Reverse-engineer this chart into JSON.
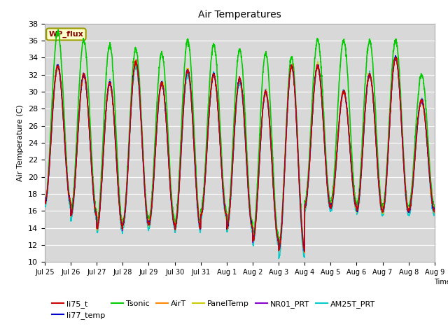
{
  "title": "Air Temperatures",
  "ylabel": "Air Temperature (C)",
  "xlabel": "Time",
  "ylim": [
    10,
    38
  ],
  "yticks": [
    10,
    12,
    14,
    16,
    18,
    20,
    22,
    24,
    26,
    28,
    30,
    32,
    34,
    36,
    38
  ],
  "series": {
    "li75_t": {
      "color": "#cc0000",
      "lw": 1.0,
      "zorder": 5
    },
    "li77_temp": {
      "color": "#0000cc",
      "lw": 1.0,
      "zorder": 5
    },
    "Tsonic": {
      "color": "#00cc00",
      "lw": 1.2,
      "zorder": 4
    },
    "AirT": {
      "color": "#ff8800",
      "lw": 1.0,
      "zorder": 5
    },
    "PanelTemp": {
      "color": "#cccc00",
      "lw": 1.0,
      "zorder": 5
    },
    "NR01_PRT": {
      "color": "#8800cc",
      "lw": 1.0,
      "zorder": 5
    },
    "AM25T_PRT": {
      "color": "#00cccc",
      "lw": 1.0,
      "zorder": 3
    }
  },
  "legend_box": {
    "label": "WP_flux",
    "facecolor": "#ffffcc",
    "edgecolor": "#999900",
    "textcolor": "#880000"
  },
  "bg_color": "#d8d8d8",
  "grid_color": "#ffffff",
  "xtick_labels": [
    "Jul 25",
    "Jul 26",
    "Jul 27",
    "Jul 28",
    "Jul 29",
    "Jul 30",
    "Jul 31",
    "Aug 1",
    "Aug 2",
    "Aug 3",
    "Aug 4",
    "Aug 5",
    "Aug 6",
    "Aug 7",
    "Aug 8",
    "Aug 9"
  ],
  "day_mins": [
    17,
    15.5,
    14,
    14.5,
    14.5,
    14,
    15.5,
    14,
    12.5,
    11.5,
    16.5,
    16.5,
    16,
    16,
    16
  ],
  "day_maxs": [
    33,
    32,
    31,
    33.5,
    31,
    32.5,
    32,
    31.5,
    30,
    33,
    33,
    30,
    32,
    34,
    29
  ],
  "tsonic_day_mins": [
    17,
    16,
    14.5,
    15,
    15,
    14.5,
    16,
    14.5,
    13,
    12,
    17,
    17,
    16.5,
    16.5,
    16.5
  ],
  "tsonic_day_maxs": [
    37,
    36,
    35.5,
    35,
    34.5,
    36,
    35.5,
    35,
    34.5,
    34,
    36,
    36,
    36,
    36,
    32
  ],
  "am25t_day_mins": [
    16.5,
    15,
    13.5,
    14,
    14,
    13.5,
    15,
    13.5,
    12,
    10.5,
    16,
    16,
    15.5,
    15.5,
    15.5
  ],
  "am25t_day_maxs": [
    33,
    32,
    31,
    33,
    31,
    32,
    32,
    31,
    30,
    33,
    33,
    30,
    32,
    34,
    29
  ],
  "figsize": [
    6.4,
    4.8
  ],
  "dpi": 100,
  "n_days": 15,
  "pts_per_day": 144
}
